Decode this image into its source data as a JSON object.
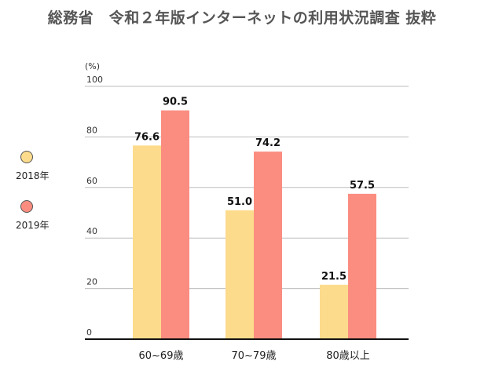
{
  "chart_data": {
    "type": "bar",
    "title": "総務省　令和２年版インターネットの利用状況調査 抜粋",
    "unit_label": "(%)",
    "categories": [
      "60~69歳",
      "70~79歳",
      "80歳以上"
    ],
    "series": [
      {
        "name": "2018年",
        "values": [
          76.6,
          51.0,
          21.5
        ],
        "color": "#FDDB8C"
      },
      {
        "name": "2019年",
        "values": [
          90.5,
          74.2,
          57.5
        ],
        "color": "#FB8D80"
      }
    ],
    "value_labels": [
      [
        "76.6",
        "51.0",
        "21.5"
      ],
      [
        "90.5",
        "74.2",
        "57.5"
      ]
    ],
    "ylim": [
      0,
      100
    ],
    "yticks": [
      0,
      20,
      40,
      60,
      80,
      100
    ],
    "grid": true,
    "legend_position": "left"
  }
}
